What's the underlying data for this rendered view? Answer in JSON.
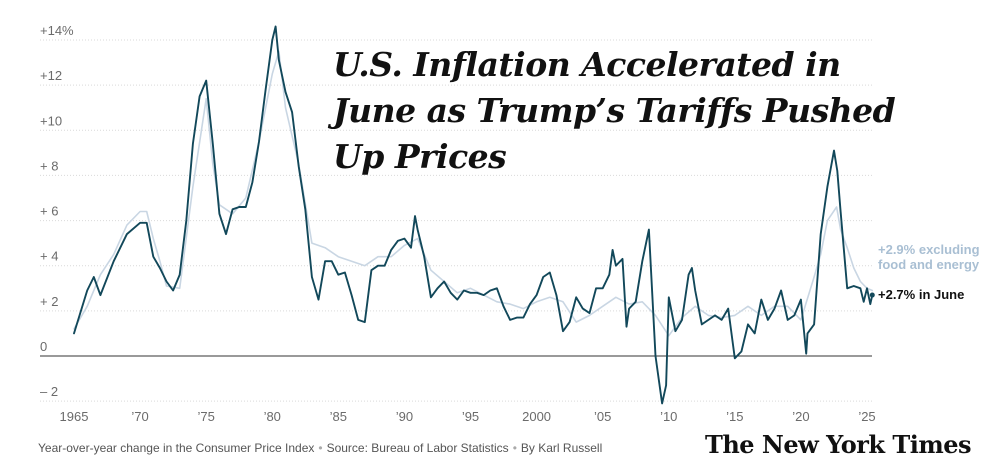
{
  "chart_data": {
    "type": "line",
    "title": "U.S. Inflation Accelerated in June as Trump’s Tariffs Pushed Up Prices",
    "subtitle": "Year-over-year change in the Consumer Price Index",
    "source": "Source: Bureau of Labor Statistics",
    "byline": "By Karl Russell",
    "xlim": [
      1965,
      2025.5
    ],
    "ylim": [
      -2.5,
      14.8
    ],
    "x_ticks": [
      {
        "value": 1965,
        "label": "1965"
      },
      {
        "value": 1970,
        "label": "’70"
      },
      {
        "value": 1975,
        "label": "’75"
      },
      {
        "value": 1980,
        "label": "’80"
      },
      {
        "value": 1985,
        "label": "’85"
      },
      {
        "value": 1990,
        "label": "’90"
      },
      {
        "value": 1995,
        "label": "’95"
      },
      {
        "value": 2000,
        "label": "2000"
      },
      {
        "value": 2005,
        "label": "’05"
      },
      {
        "value": 2010,
        "label": "’10"
      },
      {
        "value": 2015,
        "label": "’15"
      },
      {
        "value": 2020,
        "label": "’20"
      },
      {
        "value": 2025,
        "label": "’25"
      }
    ],
    "y_ticks": [
      {
        "value": 14,
        "label": "+14%"
      },
      {
        "value": 12,
        "label": "+12"
      },
      {
        "value": 10,
        "label": "+10"
      },
      {
        "value": 8,
        "label": "+ 8"
      },
      {
        "value": 6,
        "label": "+ 6"
      },
      {
        "value": 4,
        "label": "+ 4"
      },
      {
        "value": 2,
        "label": "+ 2"
      },
      {
        "value": 0,
        "label": "0"
      },
      {
        "value": -2,
        "label": "– 2"
      }
    ],
    "grid": true,
    "series": [
      {
        "name": "excluding food and energy",
        "color": "#c9d6e3",
        "points": [
          [
            1965.0,
            1.2
          ],
          [
            1966.0,
            2.2
          ],
          [
            1967.0,
            3.6
          ],
          [
            1968.0,
            4.5
          ],
          [
            1969.0,
            5.8
          ],
          [
            1970.0,
            6.4
          ],
          [
            1970.5,
            6.4
          ],
          [
            1971.0,
            5.2
          ],
          [
            1971.5,
            4.2
          ],
          [
            1972.0,
            3.1
          ],
          [
            1973.0,
            3.0
          ],
          [
            1974.0,
            7.5
          ],
          [
            1975.0,
            11.4
          ],
          [
            1975.5,
            8.5
          ],
          [
            1976.0,
            6.7
          ],
          [
            1977.0,
            6.3
          ],
          [
            1978.0,
            7.0
          ],
          [
            1979.0,
            9.5
          ],
          [
            1980.0,
            12.5
          ],
          [
            1980.5,
            13.5
          ],
          [
            1981.0,
            11.0
          ],
          [
            1982.0,
            8.5
          ],
          [
            1983.0,
            5.0
          ],
          [
            1984.0,
            4.8
          ],
          [
            1985.0,
            4.4
          ],
          [
            1986.0,
            4.2
          ],
          [
            1987.0,
            4.0
          ],
          [
            1988.0,
            4.4
          ],
          [
            1989.0,
            4.4
          ],
          [
            1990.0,
            4.9
          ],
          [
            1991.0,
            5.2
          ],
          [
            1992.0,
            3.8
          ],
          [
            1993.0,
            3.3
          ],
          [
            1994.0,
            2.8
          ],
          [
            1995.0,
            3.0
          ],
          [
            1996.0,
            2.7
          ],
          [
            1997.0,
            2.4
          ],
          [
            1998.0,
            2.3
          ],
          [
            1999.0,
            2.1
          ],
          [
            2000.0,
            2.4
          ],
          [
            2001.0,
            2.6
          ],
          [
            2002.0,
            2.4
          ],
          [
            2003.0,
            1.5
          ],
          [
            2004.0,
            1.8
          ],
          [
            2005.0,
            2.2
          ],
          [
            2006.0,
            2.6
          ],
          [
            2007.0,
            2.3
          ],
          [
            2008.0,
            2.4
          ],
          [
            2009.0,
            1.8
          ],
          [
            2010.0,
            0.9
          ],
          [
            2011.0,
            1.7
          ],
          [
            2012.0,
            2.2
          ],
          [
            2013.0,
            1.8
          ],
          [
            2014.0,
            1.7
          ],
          [
            2015.0,
            1.8
          ],
          [
            2016.0,
            2.2
          ],
          [
            2017.0,
            1.8
          ],
          [
            2018.0,
            2.2
          ],
          [
            2019.0,
            2.2
          ],
          [
            2020.0,
            1.6
          ],
          [
            2021.0,
            3.5
          ],
          [
            2021.5,
            4.5
          ],
          [
            2022.0,
            6.0
          ],
          [
            2022.7,
            6.6
          ],
          [
            2023.0,
            5.6
          ],
          [
            2023.5,
            4.8
          ],
          [
            2024.0,
            3.9
          ],
          [
            2024.5,
            3.3
          ],
          [
            2025.0,
            3.0
          ],
          [
            2025.4,
            2.9
          ]
        ]
      },
      {
        "name": "Consumer Price Index",
        "color": "#12485a",
        "points": [
          [
            1965.0,
            1.0
          ],
          [
            1966.0,
            2.9
          ],
          [
            1966.5,
            3.5
          ],
          [
            1967.0,
            2.7
          ],
          [
            1968.0,
            4.2
          ],
          [
            1969.0,
            5.4
          ],
          [
            1970.0,
            5.9
          ],
          [
            1970.5,
            5.9
          ],
          [
            1971.0,
            4.4
          ],
          [
            1971.5,
            3.9
          ],
          [
            1972.0,
            3.3
          ],
          [
            1972.5,
            2.9
          ],
          [
            1973.0,
            3.6
          ],
          [
            1973.5,
            6.0
          ],
          [
            1974.0,
            9.4
          ],
          [
            1974.5,
            11.5
          ],
          [
            1975.0,
            12.2
          ],
          [
            1975.5,
            9.4
          ],
          [
            1976.0,
            6.3
          ],
          [
            1976.5,
            5.4
          ],
          [
            1977.0,
            6.5
          ],
          [
            1977.5,
            6.6
          ],
          [
            1978.0,
            6.6
          ],
          [
            1978.5,
            7.7
          ],
          [
            1979.0,
            9.5
          ],
          [
            1979.5,
            11.8
          ],
          [
            1980.0,
            14.0
          ],
          [
            1980.25,
            14.6
          ],
          [
            1980.5,
            13.1
          ],
          [
            1981.0,
            11.7
          ],
          [
            1981.5,
            10.8
          ],
          [
            1982.0,
            8.4
          ],
          [
            1982.5,
            6.5
          ],
          [
            1983.0,
            3.5
          ],
          [
            1983.5,
            2.5
          ],
          [
            1984.0,
            4.2
          ],
          [
            1984.5,
            4.2
          ],
          [
            1985.0,
            3.6
          ],
          [
            1985.5,
            3.7
          ],
          [
            1986.0,
            2.7
          ],
          [
            1986.5,
            1.6
          ],
          [
            1987.0,
            1.5
          ],
          [
            1987.5,
            3.8
          ],
          [
            1988.0,
            4.0
          ],
          [
            1988.5,
            4.0
          ],
          [
            1989.0,
            4.7
          ],
          [
            1989.5,
            5.1
          ],
          [
            1990.0,
            5.2
          ],
          [
            1990.5,
            4.8
          ],
          [
            1990.8,
            6.2
          ],
          [
            1991.0,
            5.6
          ],
          [
            1991.5,
            4.4
          ],
          [
            1992.0,
            2.6
          ],
          [
            1992.5,
            3.0
          ],
          [
            1993.0,
            3.3
          ],
          [
            1993.5,
            2.8
          ],
          [
            1994.0,
            2.5
          ],
          [
            1994.5,
            2.9
          ],
          [
            1995.0,
            2.8
          ],
          [
            1995.5,
            2.8
          ],
          [
            1996.0,
            2.7
          ],
          [
            1996.5,
            2.9
          ],
          [
            1997.0,
            3.0
          ],
          [
            1997.5,
            2.2
          ],
          [
            1998.0,
            1.6
          ],
          [
            1998.5,
            1.7
          ],
          [
            1999.0,
            1.7
          ],
          [
            1999.5,
            2.3
          ],
          [
            2000.0,
            2.7
          ],
          [
            2000.5,
            3.5
          ],
          [
            2001.0,
            3.7
          ],
          [
            2001.5,
            2.7
          ],
          [
            2002.0,
            1.1
          ],
          [
            2002.5,
            1.5
          ],
          [
            2003.0,
            2.6
          ],
          [
            2003.5,
            2.1
          ],
          [
            2004.0,
            1.9
          ],
          [
            2004.5,
            3.0
          ],
          [
            2005.0,
            3.0
          ],
          [
            2005.5,
            3.6
          ],
          [
            2005.75,
            4.7
          ],
          [
            2006.0,
            4.0
          ],
          [
            2006.5,
            4.3
          ],
          [
            2006.8,
            1.3
          ],
          [
            2007.0,
            2.1
          ],
          [
            2007.5,
            2.4
          ],
          [
            2008.0,
            4.2
          ],
          [
            2008.5,
            5.6
          ],
          [
            2008.9,
            1.1
          ],
          [
            2009.0,
            0.0
          ],
          [
            2009.5,
            -2.1
          ],
          [
            2009.8,
            -1.3
          ],
          [
            2010.0,
            2.6
          ],
          [
            2010.5,
            1.1
          ],
          [
            2011.0,
            1.6
          ],
          [
            2011.5,
            3.6
          ],
          [
            2011.75,
            3.9
          ],
          [
            2012.0,
            2.9
          ],
          [
            2012.5,
            1.4
          ],
          [
            2013.0,
            1.6
          ],
          [
            2013.5,
            1.8
          ],
          [
            2014.0,
            1.6
          ],
          [
            2014.5,
            2.1
          ],
          [
            2015.0,
            -0.1
          ],
          [
            2015.5,
            0.2
          ],
          [
            2016.0,
            1.4
          ],
          [
            2016.5,
            1.0
          ],
          [
            2017.0,
            2.5
          ],
          [
            2017.5,
            1.6
          ],
          [
            2018.0,
            2.1
          ],
          [
            2018.5,
            2.9
          ],
          [
            2019.0,
            1.6
          ],
          [
            2019.5,
            1.8
          ],
          [
            2020.0,
            2.5
          ],
          [
            2020.4,
            0.1
          ],
          [
            2020.5,
            1.0
          ],
          [
            2021.0,
            1.4
          ],
          [
            2021.5,
            5.4
          ],
          [
            2022.0,
            7.5
          ],
          [
            2022.5,
            9.1
          ],
          [
            2022.75,
            8.2
          ],
          [
            2023.0,
            6.4
          ],
          [
            2023.5,
            3.0
          ],
          [
            2024.0,
            3.1
          ],
          [
            2024.5,
            3.0
          ],
          [
            2024.75,
            2.4
          ],
          [
            2025.0,
            3.0
          ],
          [
            2025.25,
            2.3
          ],
          [
            2025.4,
            2.7
          ]
        ]
      }
    ],
    "annotations": [
      {
        "series": "excluding food and energy",
        "lines": [
          "+2.9% excluding",
          "food and energy"
        ]
      },
      {
        "series": "Consumer Price Index",
        "lines": [
          "+2.7% in June"
        ]
      }
    ]
  },
  "brand": {
    "logo_text": "The New York Times"
  }
}
